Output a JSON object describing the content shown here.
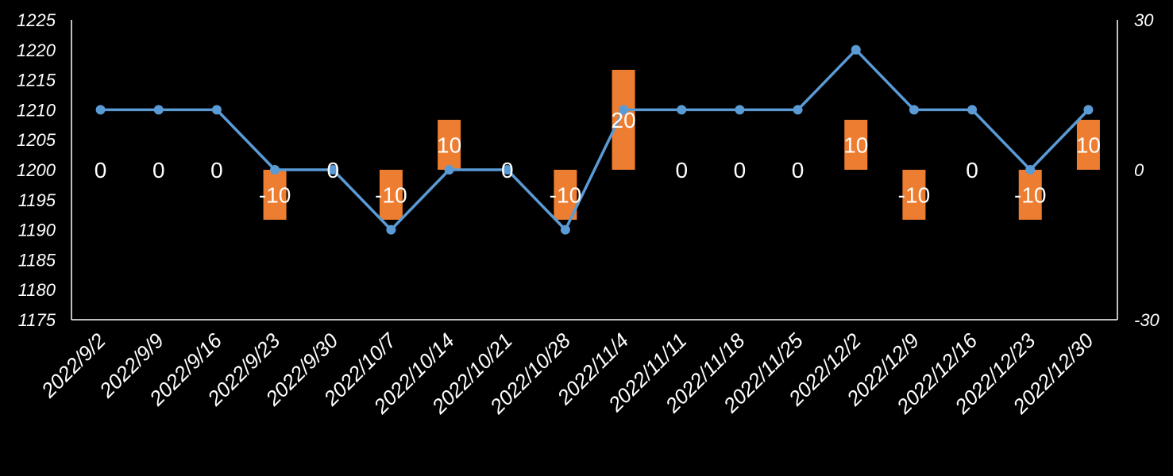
{
  "chart_data": {
    "type": "combo-bar-line",
    "title": "",
    "categories": [
      "2022/9/2",
      "2022/9/9",
      "2022/9/16",
      "2022/9/23",
      "2022/9/30",
      "2022/10/7",
      "2022/10/14",
      "2022/10/21",
      "2022/10/28",
      "2022/11/4",
      "2022/11/11",
      "2022/11/18",
      "2022/11/25",
      "2022/12/2",
      "2022/12/9",
      "2022/12/16",
      "2022/12/23",
      "2022/12/30"
    ],
    "series": [
      {
        "type": "line",
        "axis": "left",
        "values": [
          1210,
          1210,
          1210,
          1200,
          1200,
          1190,
          1200,
          1200,
          1190,
          1210,
          1210,
          1210,
          1210,
          1220,
          1210,
          1210,
          1200,
          1210
        ],
        "color": "#5B9BD5"
      },
      {
        "type": "bar",
        "axis": "right",
        "values": [
          0,
          0,
          0,
          -10,
          0,
          -10,
          10,
          0,
          -10,
          20,
          0,
          0,
          0,
          10,
          -10,
          0,
          -10,
          10
        ],
        "labels": [
          "0",
          "0",
          "0",
          "-10",
          "0",
          "-10",
          "10",
          "0",
          "-10",
          "20",
          "0",
          "0",
          "0",
          "10",
          "-10",
          "0",
          "-10",
          "10"
        ],
        "color": "#ED7D31"
      }
    ],
    "y_left": {
      "min": 1175,
      "max": 1225,
      "ticks": [
        "1175",
        "1180",
        "1185",
        "1190",
        "1195",
        "1200",
        "1205",
        "1210",
        "1215",
        "1220",
        "1225"
      ]
    },
    "y_right": {
      "min": -30,
      "max": 30,
      "ticks": [
        "-30",
        "0",
        "30"
      ]
    },
    "grid": false,
    "legend": "none"
  }
}
